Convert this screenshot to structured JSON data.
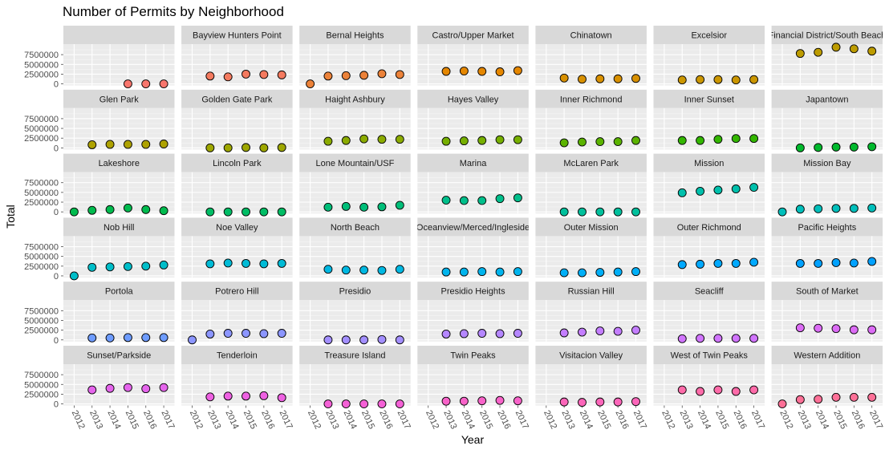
{
  "chart_data": {
    "type": "scatter",
    "title": "Number of Permits by Neighborhood",
    "xlabel": "Year",
    "ylabel": "Total",
    "x": [
      "2012",
      "2013",
      "2014",
      "2015",
      "2016",
      "2017"
    ],
    "y_ticks": [
      0,
      2500000,
      5000000,
      7500000
    ],
    "y_tick_labels": [
      "0",
      "2500000",
      "5000000",
      "7500000"
    ],
    "ylim": [
      -400000,
      10200000
    ],
    "grid": true,
    "facet_columns": 7,
    "panels": [
      {
        "name": "",
        "color": "#F8766D",
        "values": [
          null,
          null,
          null,
          0,
          0,
          0
        ]
      },
      {
        "name": "Bayview Hunters Point",
        "color": "#F47A5F",
        "values": [
          null,
          2000000,
          1800000,
          2500000,
          2400000,
          2300000
        ]
      },
      {
        "name": "Bernal Heights",
        "color": "#EC8239",
        "values": [
          0,
          2000000,
          2100000,
          2200000,
          2600000,
          2400000
        ]
      },
      {
        "name": "Castro/Upper Market",
        "color": "#E58700",
        "values": [
          null,
          3200000,
          3300000,
          3200000,
          3100000,
          3400000
        ]
      },
      {
        "name": "Chinatown",
        "color": "#D89000",
        "values": [
          null,
          1500000,
          1200000,
          1300000,
          1300000,
          1400000
        ]
      },
      {
        "name": "Excelsior",
        "color": "#CB9600",
        "values": [
          null,
          1000000,
          1100000,
          1100000,
          1000000,
          1100000
        ]
      },
      {
        "name": "Financial District/South Beach",
        "color": "#BD9C00",
        "values": [
          null,
          7800000,
          8100000,
          9400000,
          9000000,
          8400000
        ]
      },
      {
        "name": "Glen Park",
        "color": "#AEA200",
        "values": [
          null,
          800000,
          900000,
          900000,
          900000,
          1000000
        ]
      },
      {
        "name": "Golden Gate Park",
        "color": "#9EA700",
        "values": [
          null,
          0,
          0,
          100000,
          0,
          100000
        ]
      },
      {
        "name": "Haight Ashbury",
        "color": "#8BAB00",
        "values": [
          null,
          1700000,
          1900000,
          2300000,
          2200000,
          2200000
        ]
      },
      {
        "name": "Hayes Valley",
        "color": "#76AF00",
        "values": [
          null,
          1700000,
          1800000,
          1900000,
          2100000,
          2100000
        ]
      },
      {
        "name": "Inner Richmond",
        "color": "#5BB300",
        "values": [
          null,
          1300000,
          1500000,
          1600000,
          1600000,
          1900000
        ]
      },
      {
        "name": "Inner Sunset",
        "color": "#33B600",
        "values": [
          null,
          1900000,
          1900000,
          2200000,
          2400000,
          2400000
        ]
      },
      {
        "name": "Japantown",
        "color": "#00B92D",
        "values": [
          null,
          0,
          100000,
          200000,
          200000,
          300000
        ]
      },
      {
        "name": "Lakeshore",
        "color": "#00BB4E",
        "values": [
          0,
          400000,
          600000,
          1000000,
          600000,
          300000
        ]
      },
      {
        "name": "Lincoln Park",
        "color": "#00BD65",
        "values": [
          null,
          0,
          0,
          0,
          0,
          0
        ]
      },
      {
        "name": "Lone Mountain/USF",
        "color": "#00BE79",
        "values": [
          null,
          1200000,
          1400000,
          1200000,
          1300000,
          1700000
        ]
      },
      {
        "name": "Marina",
        "color": "#00BF8B",
        "values": [
          null,
          3000000,
          2900000,
          2900000,
          3400000,
          3600000
        ]
      },
      {
        "name": "McLaren Park",
        "color": "#00C09C",
        "values": [
          null,
          0,
          0,
          0,
          0,
          0
        ]
      },
      {
        "name": "Mission",
        "color": "#00C0AC",
        "values": [
          null,
          4900000,
          5300000,
          5600000,
          5900000,
          6300000
        ]
      },
      {
        "name": "Mission Bay",
        "color": "#00BFBB",
        "values": [
          0,
          700000,
          800000,
          900000,
          900000,
          1000000
        ]
      },
      {
        "name": "Nob Hill",
        "color": "#00BEC9",
        "values": [
          0,
          2200000,
          2300000,
          2400000,
          2500000,
          2800000
        ]
      },
      {
        "name": "Noe Valley",
        "color": "#00BBD6",
        "values": [
          null,
          3100000,
          3300000,
          3200000,
          3100000,
          3200000
        ]
      },
      {
        "name": "North Beach",
        "color": "#00B8E2",
        "values": [
          null,
          1700000,
          1500000,
          1500000,
          1400000,
          1700000
        ]
      },
      {
        "name": "Oceanview/Merced/Ingleside",
        "color": "#00B4ED",
        "values": [
          null,
          1000000,
          1000000,
          1100000,
          1000000,
          1100000
        ]
      },
      {
        "name": "Outer Mission",
        "color": "#00AFF7",
        "values": [
          null,
          800000,
          800000,
          900000,
          1000000,
          1100000
        ]
      },
      {
        "name": "Outer Richmond",
        "color": "#00A9FF",
        "values": [
          null,
          2900000,
          3000000,
          3200000,
          3200000,
          3500000
        ]
      },
      {
        "name": "Pacific Heights",
        "color": "#00A1FF",
        "values": [
          null,
          3200000,
          3200000,
          3400000,
          3300000,
          3700000
        ]
      },
      {
        "name": "Portola",
        "color": "#6E9CFF",
        "values": [
          null,
          500000,
          500000,
          600000,
          600000,
          600000
        ]
      },
      {
        "name": "Potrero Hill",
        "color": "#8C96FF",
        "values": [
          0,
          1500000,
          1700000,
          1700000,
          1600000,
          1700000
        ]
      },
      {
        "name": "Presidio",
        "color": "#A38FFF",
        "values": [
          null,
          0,
          0,
          0,
          100000,
          0
        ]
      },
      {
        "name": "Presidio Heights",
        "color": "#B587FF",
        "values": [
          null,
          1500000,
          1600000,
          1700000,
          1600000,
          1700000
        ]
      },
      {
        "name": "Russian Hill",
        "color": "#C47EFF",
        "values": [
          null,
          1800000,
          2000000,
          2300000,
          2200000,
          2500000
        ]
      },
      {
        "name": "Seacliff",
        "color": "#D175FE",
        "values": [
          null,
          300000,
          400000,
          400000,
          400000,
          400000
        ]
      },
      {
        "name": "South of Market",
        "color": "#DC6CF5",
        "values": [
          null,
          3100000,
          3000000,
          2900000,
          2600000,
          2600000
        ]
      },
      {
        "name": "Sunset/Parkside",
        "color": "#E565EC",
        "values": [
          null,
          3600000,
          4000000,
          4200000,
          3900000,
          4200000
        ]
      },
      {
        "name": "Tenderloin",
        "color": "#EE61E2",
        "values": [
          null,
          1800000,
          2000000,
          2000000,
          2100000,
          1600000
        ]
      },
      {
        "name": "Treasure Island",
        "color": "#F461D6",
        "values": [
          null,
          0,
          0,
          0,
          0,
          0
        ]
      },
      {
        "name": "Twin Peaks",
        "color": "#F863C9",
        "values": [
          null,
          700000,
          700000,
          800000,
          900000,
          800000
        ]
      },
      {
        "name": "Visitacion Valley",
        "color": "#FC66BA",
        "values": [
          null,
          500000,
          400000,
          500000,
          500000,
          600000
        ]
      },
      {
        "name": "West of Twin Peaks",
        "color": "#FE6BA9",
        "values": [
          null,
          3600000,
          3200000,
          3600000,
          3200000,
          3600000
        ]
      },
      {
        "name": "Western Addition",
        "color": "#FD7097",
        "values": [
          0,
          1100000,
          1200000,
          1700000,
          1700000,
          1700000
        ]
      }
    ]
  }
}
